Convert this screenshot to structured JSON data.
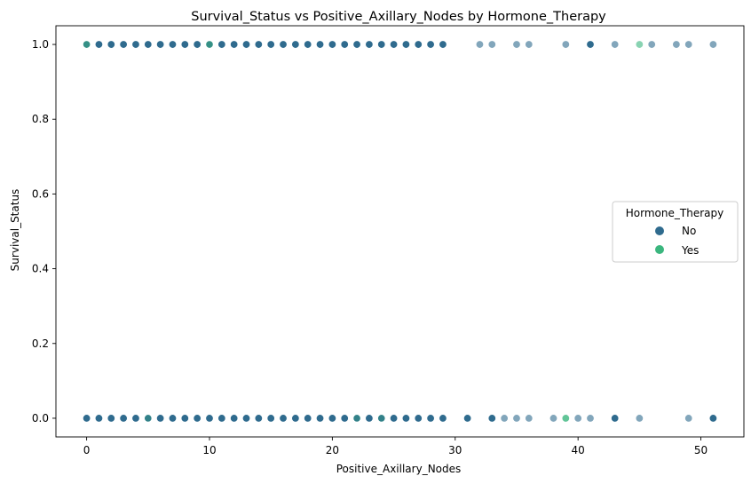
{
  "chart_data": {
    "type": "scatter",
    "title": "Survival_Status vs Positive_Axillary_Nodes by Hormone_Therapy",
    "xlabel": "Positive_Axillary_Nodes",
    "ylabel": "Survival_Status",
    "xlim": [
      -2.5,
      53.5
    ],
    "ylim": [
      -0.05,
      1.05
    ],
    "xticks": [
      0,
      10,
      20,
      30,
      40,
      50
    ],
    "yticks": [
      0.0,
      0.2,
      0.4,
      0.6,
      0.8,
      1.0
    ],
    "xtick_labels": [
      "0",
      "10",
      "20",
      "30",
      "40",
      "50"
    ],
    "ytick_labels": [
      "0.0",
      "0.2",
      "0.4",
      "0.6",
      "0.8",
      "1.0"
    ],
    "grid": false,
    "legend": {
      "title": "Hormone_Therapy",
      "placement": "center-right",
      "entries": [
        {
          "label": "No",
          "color": "#2f6b8e"
        },
        {
          "label": "Yes",
          "color": "#3bb67e"
        }
      ]
    },
    "series": [
      {
        "name": "No",
        "color": "#2f6b8e",
        "points": [
          {
            "x": 0,
            "y": 1,
            "alpha": 1.0
          },
          {
            "x": 1,
            "y": 1,
            "alpha": 1.0
          },
          {
            "x": 2,
            "y": 1,
            "alpha": 1.0
          },
          {
            "x": 3,
            "y": 1,
            "alpha": 1.0
          },
          {
            "x": 4,
            "y": 1,
            "alpha": 1.0
          },
          {
            "x": 5,
            "y": 1,
            "alpha": 1.0
          },
          {
            "x": 6,
            "y": 1,
            "alpha": 1.0
          },
          {
            "x": 7,
            "y": 1,
            "alpha": 1.0
          },
          {
            "x": 8,
            "y": 1,
            "alpha": 1.0
          },
          {
            "x": 9,
            "y": 1,
            "alpha": 1.0
          },
          {
            "x": 10,
            "y": 1,
            "alpha": 1.0
          },
          {
            "x": 11,
            "y": 1,
            "alpha": 1.0
          },
          {
            "x": 12,
            "y": 1,
            "alpha": 1.0
          },
          {
            "x": 13,
            "y": 1,
            "alpha": 1.0
          },
          {
            "x": 14,
            "y": 1,
            "alpha": 1.0
          },
          {
            "x": 15,
            "y": 1,
            "alpha": 1.0
          },
          {
            "x": 16,
            "y": 1,
            "alpha": 1.0
          },
          {
            "x": 17,
            "y": 1,
            "alpha": 1.0
          },
          {
            "x": 18,
            "y": 1,
            "alpha": 1.0
          },
          {
            "x": 19,
            "y": 1,
            "alpha": 1.0
          },
          {
            "x": 20,
            "y": 1,
            "alpha": 1.0
          },
          {
            "x": 21,
            "y": 1,
            "alpha": 1.0
          },
          {
            "x": 22,
            "y": 1,
            "alpha": 1.0
          },
          {
            "x": 23,
            "y": 1,
            "alpha": 1.0
          },
          {
            "x": 24,
            "y": 1,
            "alpha": 1.0
          },
          {
            "x": 25,
            "y": 1,
            "alpha": 1.0
          },
          {
            "x": 26,
            "y": 1,
            "alpha": 1.0
          },
          {
            "x": 27,
            "y": 1,
            "alpha": 1.0
          },
          {
            "x": 28,
            "y": 1,
            "alpha": 1.0
          },
          {
            "x": 29,
            "y": 1,
            "alpha": 1.0
          },
          {
            "x": 32,
            "y": 1,
            "alpha": 0.6
          },
          {
            "x": 33,
            "y": 1,
            "alpha": 0.6
          },
          {
            "x": 35,
            "y": 1,
            "alpha": 0.6
          },
          {
            "x": 36,
            "y": 1,
            "alpha": 0.6
          },
          {
            "x": 39,
            "y": 1,
            "alpha": 0.6
          },
          {
            "x": 41,
            "y": 1,
            "alpha": 1.0
          },
          {
            "x": 43,
            "y": 1,
            "alpha": 0.6
          },
          {
            "x": 46,
            "y": 1,
            "alpha": 0.6
          },
          {
            "x": 48,
            "y": 1,
            "alpha": 0.6
          },
          {
            "x": 49,
            "y": 1,
            "alpha": 0.6
          },
          {
            "x": 51,
            "y": 1,
            "alpha": 0.6
          },
          {
            "x": 0,
            "y": 0,
            "alpha": 1.0
          },
          {
            "x": 1,
            "y": 0,
            "alpha": 1.0
          },
          {
            "x": 2,
            "y": 0,
            "alpha": 1.0
          },
          {
            "x": 3,
            "y": 0,
            "alpha": 1.0
          },
          {
            "x": 4,
            "y": 0,
            "alpha": 1.0
          },
          {
            "x": 5,
            "y": 0,
            "alpha": 1.0
          },
          {
            "x": 6,
            "y": 0,
            "alpha": 1.0
          },
          {
            "x": 7,
            "y": 0,
            "alpha": 1.0
          },
          {
            "x": 8,
            "y": 0,
            "alpha": 1.0
          },
          {
            "x": 9,
            "y": 0,
            "alpha": 1.0
          },
          {
            "x": 10,
            "y": 0,
            "alpha": 1.0
          },
          {
            "x": 11,
            "y": 0,
            "alpha": 1.0
          },
          {
            "x": 12,
            "y": 0,
            "alpha": 1.0
          },
          {
            "x": 13,
            "y": 0,
            "alpha": 1.0
          },
          {
            "x": 14,
            "y": 0,
            "alpha": 1.0
          },
          {
            "x": 15,
            "y": 0,
            "alpha": 1.0
          },
          {
            "x": 16,
            "y": 0,
            "alpha": 1.0
          },
          {
            "x": 17,
            "y": 0,
            "alpha": 1.0
          },
          {
            "x": 18,
            "y": 0,
            "alpha": 1.0
          },
          {
            "x": 19,
            "y": 0,
            "alpha": 1.0
          },
          {
            "x": 20,
            "y": 0,
            "alpha": 1.0
          },
          {
            "x": 21,
            "y": 0,
            "alpha": 1.0
          },
          {
            "x": 22,
            "y": 0,
            "alpha": 1.0
          },
          {
            "x": 23,
            "y": 0,
            "alpha": 1.0
          },
          {
            "x": 24,
            "y": 0,
            "alpha": 1.0
          },
          {
            "x": 25,
            "y": 0,
            "alpha": 1.0
          },
          {
            "x": 26,
            "y": 0,
            "alpha": 1.0
          },
          {
            "x": 27,
            "y": 0,
            "alpha": 1.0
          },
          {
            "x": 28,
            "y": 0,
            "alpha": 1.0
          },
          {
            "x": 29,
            "y": 0,
            "alpha": 1.0
          },
          {
            "x": 31,
            "y": 0,
            "alpha": 1.0
          },
          {
            "x": 33,
            "y": 0,
            "alpha": 1.0
          },
          {
            "x": 34,
            "y": 0,
            "alpha": 0.6
          },
          {
            "x": 35,
            "y": 0,
            "alpha": 0.6
          },
          {
            "x": 36,
            "y": 0,
            "alpha": 0.6
          },
          {
            "x": 38,
            "y": 0,
            "alpha": 0.6
          },
          {
            "x": 40,
            "y": 0,
            "alpha": 0.6
          },
          {
            "x": 41,
            "y": 0,
            "alpha": 0.6
          },
          {
            "x": 43,
            "y": 0,
            "alpha": 1.0
          },
          {
            "x": 45,
            "y": 0,
            "alpha": 0.6
          },
          {
            "x": 49,
            "y": 0,
            "alpha": 0.6
          },
          {
            "x": 51,
            "y": 0,
            "alpha": 1.0
          }
        ]
      },
      {
        "name": "Yes",
        "color": "#3bb67e",
        "points": [
          {
            "x": 0,
            "y": 1,
            "alpha": 0.5
          },
          {
            "x": 10,
            "y": 1,
            "alpha": 0.5
          },
          {
            "x": 45,
            "y": 1,
            "alpha": 0.6
          },
          {
            "x": 5,
            "y": 0,
            "alpha": 0.3
          },
          {
            "x": 22,
            "y": 0,
            "alpha": 0.3
          },
          {
            "x": 24,
            "y": 0,
            "alpha": 0.3
          },
          {
            "x": 39,
            "y": 0,
            "alpha": 0.8
          }
        ]
      }
    ]
  }
}
